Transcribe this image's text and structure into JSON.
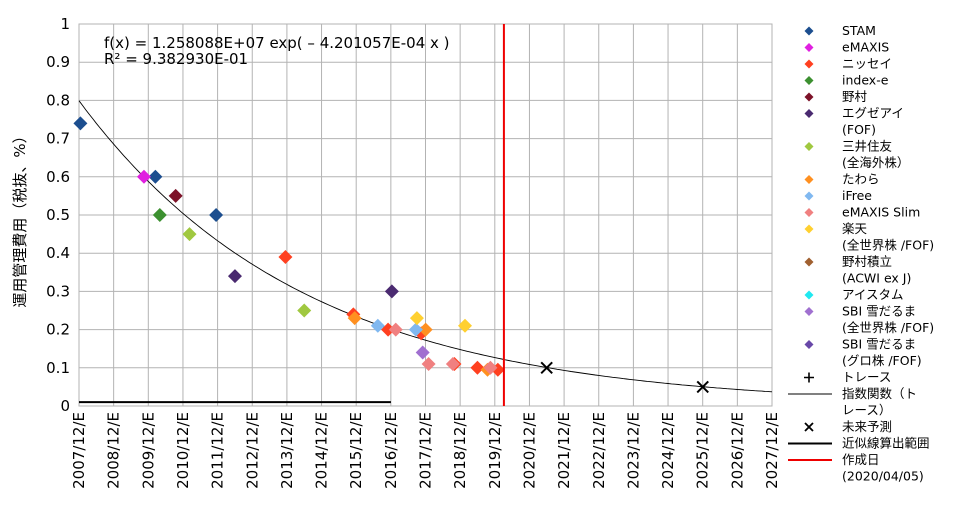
{
  "chart_data": {
    "type": "scatter",
    "ylabel": "運用管理費用（税抜、%）",
    "ylim": [
      0,
      1
    ],
    "yticks": [
      "0",
      "0.1",
      "0.2",
      "0.3",
      "0.4",
      "0.5",
      "0.6",
      "0.7",
      "0.8",
      "0.9",
      "1"
    ],
    "xlim": [
      "2007-12-31",
      "2027-12-31"
    ],
    "xticks": [
      "2007/12/E",
      "2008/12/E",
      "2009/12/E",
      "2010/12/E",
      "2011/12/E",
      "2012/12/E",
      "2013/12/E",
      "2014/12/E",
      "2015/12/E",
      "2016/12/E",
      "2017/12/E",
      "2018/12/E",
      "2019/12/E",
      "2020/12/E",
      "2021/12/E",
      "2022/12/E",
      "2023/12/E",
      "2024/12/E",
      "2025/12/E",
      "2026/12/E",
      "2027/12/E"
    ],
    "fit_equation": "f(x) = 1.258088E+07 exp( – 4.201057E-04 x )",
    "r_squared": "R² = 9.382930E-01",
    "fit": {
      "a": 12580880,
      "b": 0.0004201057
    },
    "series": [
      {
        "name": "STAM",
        "color": "#1c4e8f",
        "points": [
          [
            "2008-01-15",
            0.74
          ],
          [
            "2010-03-15",
            0.6
          ],
          [
            "2011-12-15",
            0.5
          ]
        ]
      },
      {
        "name": "eMAXIS",
        "color": "#e020e0",
        "points": [
          [
            "2009-11-15",
            0.6
          ]
        ]
      },
      {
        "name": "ニッセイ",
        "color": "#ff4020",
        "points": [
          [
            "2013-12-15",
            0.39
          ],
          [
            "2015-12-01",
            0.24
          ],
          [
            "2016-12-01",
            0.2
          ],
          [
            "2017-11-15",
            0.19
          ],
          [
            "2018-11-01",
            0.11
          ],
          [
            "2019-07-01",
            0.1
          ],
          [
            "2020-02-01",
            0.095
          ]
        ]
      },
      {
        "name": "index-e",
        "color": "#3c9030",
        "points": [
          [
            "2010-05-01",
            0.5
          ]
        ]
      },
      {
        "name": "野村",
        "color": "#7d1228",
        "points": [
          [
            "2010-10-15",
            0.55
          ]
        ]
      },
      {
        "name": "エグゼアイ\n(FOF)",
        "color": "#4a2a70",
        "points": [
          [
            "2012-07-01",
            0.34
          ],
          [
            "2017-01-10",
            0.3
          ]
        ]
      },
      {
        "name": "三井住友\n(全海外株）",
        "color": "#a0c840",
        "points": [
          [
            "2011-03-10",
            0.45
          ],
          [
            "2014-07-01",
            0.25
          ]
        ]
      },
      {
        "name": "たわら",
        "color": "#ff9020",
        "points": [
          [
            "2015-12-15",
            0.23
          ],
          [
            "2018-01-01",
            0.2
          ],
          [
            "2019-10-15",
            0.095
          ]
        ]
      },
      {
        "name": "iFree",
        "color": "#80b8f0",
        "points": [
          [
            "2016-08-15",
            0.21
          ],
          [
            "2017-09-20",
            0.2
          ]
        ]
      },
      {
        "name": "eMAXIS Slim",
        "color": "#f08080",
        "points": [
          [
            "2017-02-20",
            0.2
          ],
          [
            "2018-02-01",
            0.11
          ],
          [
            "2018-10-15",
            0.11
          ],
          [
            "2019-11-15",
            0.1
          ]
        ]
      },
      {
        "name": "楽天\n(全世界株 /FOF)",
        "color": "#ffd030",
        "points": [
          [
            "2017-10-01",
            0.23
          ],
          [
            "2019-02-20",
            0.21
          ]
        ]
      },
      {
        "name": "野村積立\n(ACWI ex J)",
        "color": "#a06030",
        "points": []
      },
      {
        "name": "アイスタム",
        "color": "#20e8f0",
        "points": []
      },
      {
        "name": "SBI 雪だるま\n(全世界株 /FOF)",
        "color": "#a070d0",
        "points": [
          [
            "2017-12-01",
            0.14
          ]
        ]
      },
      {
        "name": "SBI 雪だるま\n(グロ株 /FOF)",
        "color": "#6848a8",
        "points": []
      },
      {
        "name": "トレース",
        "marker": "plus"
      },
      {
        "name": "指数関数（ト\nレース）",
        "marker": "fitline",
        "color": "#000000"
      },
      {
        "name": "未来予測",
        "marker": "x",
        "color": "#000000",
        "points": [
          [
            "2021-06-30",
            0.1
          ],
          [
            "2025-12-31",
            0.05
          ]
        ]
      },
      {
        "name": "近似線算出範囲",
        "marker": "hline",
        "color": "#000000",
        "range": [
          "2007-12-31",
          "2016-12-31"
        ],
        "y": 0.01
      },
      {
        "name": "作成日\n(2020/04/05)",
        "marker": "vline",
        "color": "#ee0000",
        "x": "2020-04-05"
      }
    ]
  }
}
